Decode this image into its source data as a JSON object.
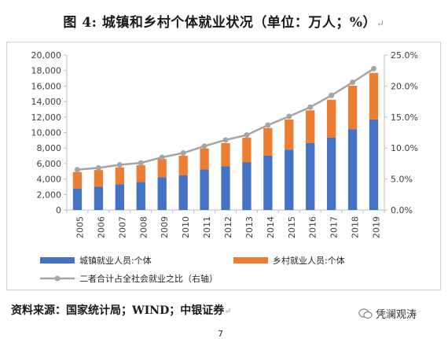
{
  "title": "图 4:  城镇和乡村个体就业状况（单位：万人；%）",
  "title_mark": "↵",
  "source": "资料来源：国家统计局；WIND；中银证券",
  "source_mark": "↵",
  "brand": "凭澜观涛",
  "page_number": "7",
  "chart_data": {
    "type": "bar",
    "stacked": true,
    "categories": [
      "2005",
      "2006",
      "2007",
      "2008",
      "2009",
      "2010",
      "2011",
      "2012",
      "2013",
      "2014",
      "2015",
      "2016",
      "2017",
      "2018",
      "2019"
    ],
    "series": [
      {
        "name": "城镇就业人员:个体",
        "type": "bar",
        "color": "#4472C4",
        "values": [
          2780,
          3010,
          3310,
          3610,
          4245,
          4465,
          5227,
          5643,
          6142,
          7009,
          7800,
          8627,
          9348,
          10440,
          11692
        ]
      },
      {
        "name": "乡村就业人员:个体",
        "type": "bar",
        "color": "#ED7D31",
        "values": [
          2123,
          2147,
          2187,
          2167,
          2341,
          2540,
          2718,
          2986,
          3193,
          3575,
          3882,
          4235,
          4878,
          5597,
          6000
        ]
      },
      {
        "name": "二者合计占全社会就业之比（右轴）",
        "type": "line",
        "axis": "right",
        "color": "#A5A5A5",
        "values": [
          6.5,
          6.8,
          7.3,
          7.6,
          8.5,
          9.2,
          10.3,
          11.3,
          12.1,
          13.7,
          15.1,
          16.6,
          18.5,
          20.6,
          22.8
        ]
      }
    ],
    "y_left": {
      "min": 0,
      "max": 20000,
      "step": 2000,
      "ticks": [
        "0",
        "2,000",
        "4,000",
        "6,000",
        "8,000",
        "10,000",
        "12,000",
        "14,000",
        "16,000",
        "18,000",
        "20,000"
      ]
    },
    "y_right": {
      "min": 0,
      "max": 25,
      "step": 5,
      "ticks": [
        "0.0%",
        "5.0%",
        "10.0%",
        "15.0%",
        "20.0%",
        "25.0%"
      ]
    },
    "legend_position": "bottom",
    "grid": false
  }
}
